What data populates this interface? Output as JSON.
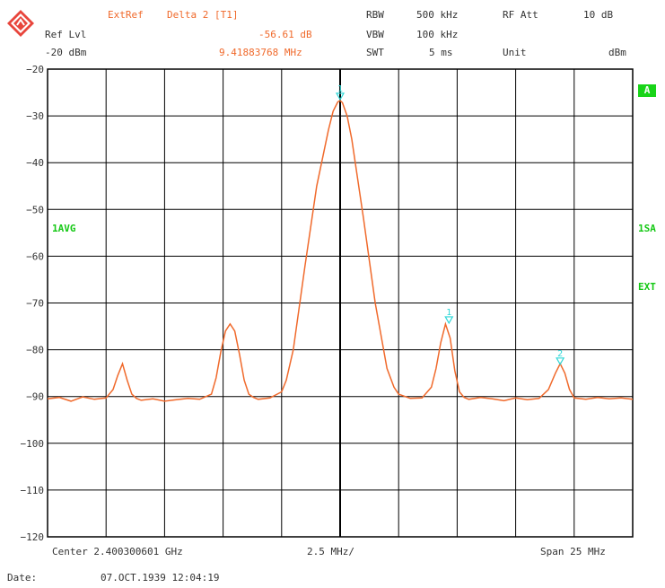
{
  "header": {
    "ext_ref": "ExtRef",
    "marker_title": "Delta 2 [T1]",
    "ref_lvl_label": "Ref Lvl",
    "ref_lvl_value": "-20 dBm",
    "marker_level": "-56.61 dB",
    "marker_freq": "9.41883768 MHz",
    "rbw_label": "RBW",
    "rbw_value": "500 kHz",
    "vbw_label": "VBW",
    "vbw_value": "100 kHz",
    "swt_label": "SWT",
    "swt_value": "5 ms",
    "rf_att_label": "RF Att",
    "rf_att_value": "10 dB",
    "unit_label": "Unit",
    "unit_value": "dBm"
  },
  "side_labels": {
    "trace_a": "A",
    "avg": "1AVG",
    "sa": "1SA",
    "ext": "EXT"
  },
  "footer": {
    "center": "Center 2.400300601 GHz",
    "div": "2.5 MHz/",
    "span": "Span 25 MHz",
    "date_label": "Date:",
    "date_value": "07.OCT.1939  12:04:19"
  },
  "colors": {
    "trace": "#f06a2c",
    "marker": "#2fd7d7",
    "grid": "#000000",
    "badge": "#18d418"
  },
  "chart_data": {
    "type": "line",
    "xlabel": "",
    "ylabel": "",
    "x_unit": "MHz offset from center",
    "xlim": [
      -12.5,
      12.5
    ],
    "ylim": [
      -120,
      -20
    ],
    "yticks": [
      -20,
      -30,
      -40,
      -50,
      -60,
      -70,
      -80,
      -90,
      -100,
      -110,
      -120
    ],
    "grid": true,
    "series": [
      {
        "x": [
          -12.5,
          -12.0,
          -11.5,
          -11.0,
          -10.5,
          -10.0,
          -9.7,
          -9.5,
          -9.3,
          -9.1,
          -8.9,
          -8.7,
          -8.5,
          -8.0,
          -7.5,
          -7.0,
          -6.5,
          -6.0,
          -5.5,
          -5.3,
          -5.1,
          -4.9,
          -4.7,
          -4.5,
          -4.3,
          -4.1,
          -3.9,
          -3.7,
          -3.5,
          -3.0,
          -2.5,
          -2.3,
          -2.0,
          -1.5,
          -1.0,
          -0.5,
          -0.3,
          -0.1,
          0.0,
          0.1,
          0.3,
          0.5,
          1.0,
          1.5,
          2.0,
          2.3,
          2.5,
          3.0,
          3.5,
          3.9,
          4.1,
          4.3,
          4.5,
          4.7,
          4.9,
          5.1,
          5.3,
          5.5,
          6.0,
          6.5,
          7.0,
          7.5,
          8.0,
          8.5,
          8.9,
          9.2,
          9.4,
          9.6,
          9.8,
          10.0,
          10.5,
          11.0,
          11.5,
          12.0,
          12.5
        ],
        "y": [
          -90.5,
          -90.2,
          -91.0,
          -90.1,
          -90.6,
          -90.3,
          -88.5,
          -85.5,
          -83.0,
          -86.5,
          -89.5,
          -90.4,
          -90.8,
          -90.5,
          -91.0,
          -90.7,
          -90.4,
          -90.6,
          -89.5,
          -86.0,
          -80.5,
          -76.0,
          -74.5,
          -76.0,
          -81.0,
          -86.5,
          -89.5,
          -90.2,
          -90.6,
          -90.3,
          -89.0,
          -86.5,
          -80.0,
          -62.0,
          -45.0,
          -33.0,
          -29.0,
          -27.0,
          -26.7,
          -27.2,
          -30.0,
          -35.0,
          -52.0,
          -70.0,
          -84.0,
          -88.0,
          -89.5,
          -90.4,
          -90.3,
          -88.0,
          -84.0,
          -78.5,
          -74.5,
          -77.5,
          -84.5,
          -89.0,
          -90.2,
          -90.6,
          -90.2,
          -90.5,
          -90.9,
          -90.3,
          -90.7,
          -90.4,
          -88.5,
          -85.0,
          -83.0,
          -85.0,
          -88.5,
          -90.3,
          -90.6,
          -90.2,
          -90.5,
          -90.3,
          -90.6
        ]
      }
    ],
    "markers": [
      {
        "label": "1",
        "x": 0.0,
        "y": -26.7
      },
      {
        "label": "1",
        "x": 4.65,
        "y": -74.5
      },
      {
        "label": "2",
        "x": 9.4,
        "y": -83.3
      }
    ]
  }
}
